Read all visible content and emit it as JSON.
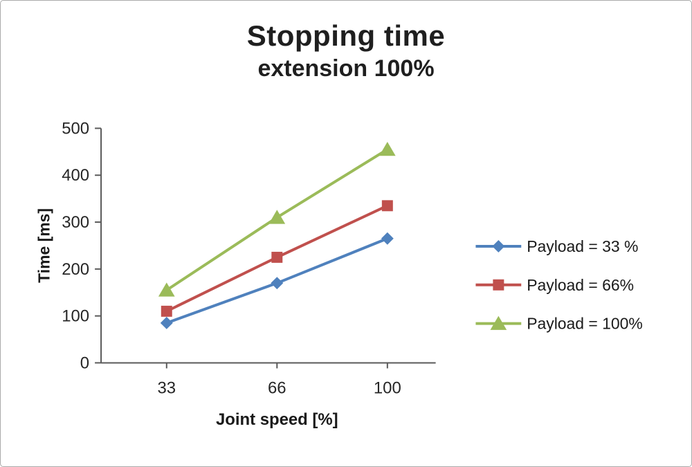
{
  "chart_data": {
    "type": "line",
    "title": "Stopping time",
    "subtitle": "extension 100%",
    "xlabel": "Joint speed [%]",
    "ylabel": "Time [ms]",
    "categories": [
      "33",
      "66",
      "100"
    ],
    "ylim": [
      0,
      500
    ],
    "ytick_step": 100,
    "grid": false,
    "legend_position": "right",
    "axis_color": "#595959",
    "text_color": "#262626",
    "series": [
      {
        "name": "Payload = 33 %",
        "marker": "diamond",
        "color": "#4F81BD",
        "values": [
          85,
          170,
          265
        ]
      },
      {
        "name": "Payload =  66%",
        "marker": "square",
        "color": "#C0504D",
        "values": [
          110,
          225,
          335
        ]
      },
      {
        "name": "Payload =  100%",
        "marker": "triangle",
        "color": "#9BBB59",
        "values": [
          155,
          310,
          455
        ]
      }
    ]
  }
}
